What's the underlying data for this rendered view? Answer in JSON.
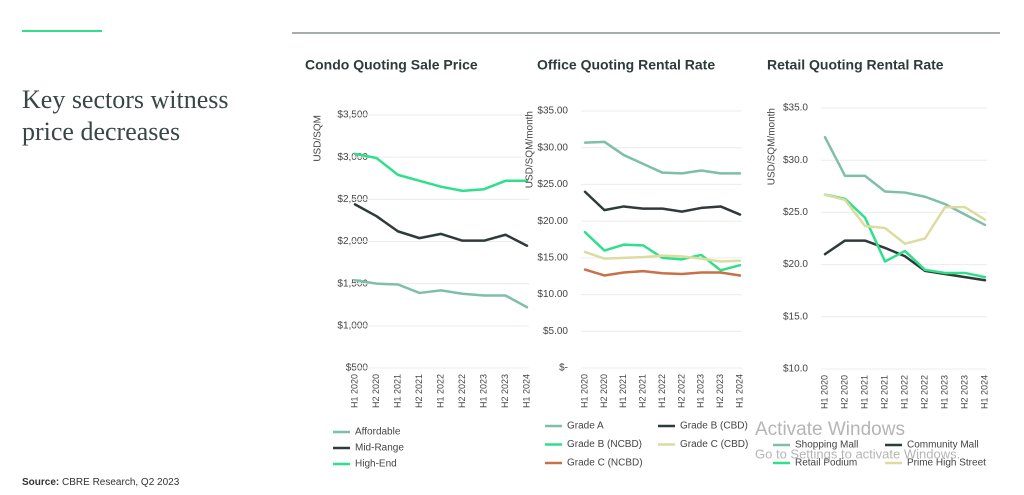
{
  "heading": "Key sectors witness price decreases",
  "source_label": "Source:",
  "source": "CBRE Research, Q2 2023",
  "watermark": [
    "Activate Windows",
    "Go to Settings to activate Windows."
  ],
  "chart_data": [
    {
      "type": "line",
      "title": "Condo Quoting Sale Price",
      "y_label": "USD/SQM",
      "categories": [
        "H1 2020",
        "H2 2020",
        "H1 2021",
        "H2 2021",
        "H1 2022",
        "H2 2022",
        "H1 2023",
        "H2 2023",
        "H1 2024"
      ],
      "ylim": [
        500,
        3500
      ],
      "yticks": [
        {
          "value": 500,
          "label": "$500"
        },
        {
          "value": 1000,
          "label": "$1,000"
        },
        {
          "value": 1500,
          "label": "$1,500"
        },
        {
          "value": 2000,
          "label": "$2,000"
        },
        {
          "value": 2500,
          "label": "$2,500"
        },
        {
          "value": 3000,
          "label": "$3,000"
        },
        {
          "value": 3500,
          "label": "$3,500"
        }
      ],
      "grid": true,
      "series": [
        {
          "name": "Affordable",
          "color": "#7fbfa8",
          "values": [
            1540,
            1500,
            1490,
            1390,
            1420,
            1380,
            1360,
            1360,
            1220
          ]
        },
        {
          "name": "Mid-Range",
          "color": "#2f3a3a",
          "values": [
            2440,
            2300,
            2120,
            2040,
            2090,
            2010,
            2010,
            2080,
            1950
          ]
        },
        {
          "name": "High-End",
          "color": "#2fe08a",
          "values": [
            3040,
            2990,
            2790,
            2720,
            2650,
            2600,
            2620,
            2720,
            2720
          ]
        }
      ]
    },
    {
      "type": "line",
      "title": "Office Quoting Rental Rate",
      "y_label": "USD/SQM/month",
      "categories": [
        "H1 2020",
        "H2 2020",
        "H1 2021",
        "H2 2021",
        "H1 2022",
        "H2 2022",
        "H1 2023",
        "H2 2023",
        "H1 2024"
      ],
      "ylim": [
        0,
        35
      ],
      "yticks": [
        {
          "value": 0,
          "label": "$-"
        },
        {
          "value": 5,
          "label": "$5.00"
        },
        {
          "value": 10,
          "label": "$10.00"
        },
        {
          "value": 15,
          "label": "$15.00"
        },
        {
          "value": 20,
          "label": "$20.00"
        },
        {
          "value": 25,
          "label": "$25.00"
        },
        {
          "value": 30,
          "label": "$30.00"
        },
        {
          "value": 35,
          "label": "$35.00"
        }
      ],
      "grid": true,
      "series": [
        {
          "name": "Grade A",
          "color": "#7fbfa8",
          "values": [
            30.7,
            30.8,
            29,
            27.8,
            26.6,
            26.5,
            26.9,
            26.5,
            26.5
          ]
        },
        {
          "name": "Grade B (CBD)",
          "color": "#2f3a3a",
          "values": [
            24,
            21.5,
            22,
            21.7,
            21.7,
            21.3,
            21.8,
            22,
            20.9
          ]
        },
        {
          "name": "Grade B (NCBD)",
          "color": "#2fe08a",
          "values": [
            18.5,
            16,
            16.8,
            16.7,
            15,
            14.8,
            15.4,
            13.3,
            14
          ]
        },
        {
          "name": "Grade C (CBD)",
          "color": "#dcdca0",
          "values": [
            15.8,
            14.9,
            15,
            15.1,
            15.3,
            15.2,
            14.9,
            14.5,
            14.6
          ]
        },
        {
          "name": "Grade C (NCBD)",
          "color": "#c8704a",
          "values": [
            13.4,
            12.6,
            13,
            13.2,
            12.9,
            12.8,
            13,
            13,
            12.6
          ]
        }
      ]
    },
    {
      "type": "line",
      "title": "Retail Quoting Rental Rate",
      "y_label": "USD/SQM/month",
      "categories": [
        "H1 2020",
        "H2 2020",
        "H1 2021",
        "H2 2021",
        "H1 2022",
        "H2 2022",
        "H1 2023",
        "H2 2023",
        "H1 2024"
      ],
      "ylim": [
        10,
        35
      ],
      "yticks": [
        {
          "value": 10,
          "label": "$10.0"
        },
        {
          "value": 15,
          "label": "$15.0"
        },
        {
          "value": 20,
          "label": "$20.0"
        },
        {
          "value": 25,
          "label": "$25.0"
        },
        {
          "value": 30,
          "label": "$30.0"
        },
        {
          "value": 35,
          "label": "$35.0"
        }
      ],
      "grid": true,
      "series": [
        {
          "name": "Shopping Mall",
          "color": "#7fbfa8",
          "values": [
            32.2,
            28.5,
            28.5,
            27,
            26.9,
            26.5,
            25.8,
            24.8,
            23.8
          ]
        },
        {
          "name": "Community Mall",
          "color": "#2f3a3a",
          "values": [
            21,
            22.3,
            22.3,
            21.6,
            20.8,
            19.4,
            19.1,
            18.8,
            18.5
          ]
        },
        {
          "name": "Retail Podium",
          "color": "#2fe08a",
          "values": [
            26.7,
            26.3,
            24.5,
            20.3,
            21.3,
            19.5,
            19.2,
            19.2,
            18.8
          ]
        },
        {
          "name": "Prime High Street",
          "color": "#dcdca0",
          "values": [
            26.7,
            26.2,
            23.7,
            23.5,
            22,
            22.5,
            25.5,
            25.5,
            24.3
          ]
        }
      ]
    }
  ]
}
